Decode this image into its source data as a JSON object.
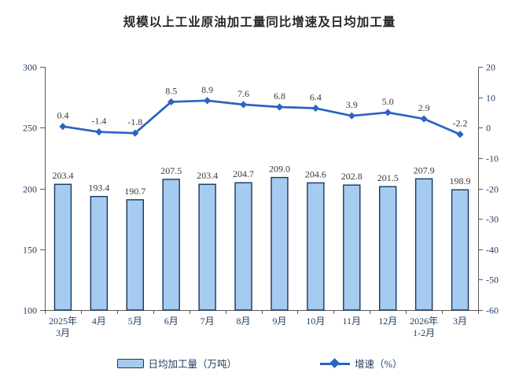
{
  "title": "规模以上工业原油加工量同比增速及日均加工量",
  "chart_data": {
    "type": "bar+line",
    "title": "规模以上工业原油加工量同比增速及日均加工量",
    "categories": [
      "2025年\n3月",
      "4月",
      "5月",
      "6月",
      "7月",
      "8月",
      "9月",
      "10月",
      "11月",
      "12月",
      "2026年\n1-2月",
      "3月"
    ],
    "bar_series": {
      "name": "日均加工量（万吨）",
      "axis": "left",
      "values": [
        203.4,
        193.4,
        190.7,
        207.5,
        203.4,
        204.7,
        209.0,
        204.6,
        202.8,
        201.5,
        207.9,
        198.9
      ],
      "labels": [
        "203.4",
        "193.4",
        "190.7",
        "207.5",
        "203.4",
        "204.7",
        "209.0",
        "204.6",
        "202.8",
        "201.5",
        "207.9",
        "198.9"
      ]
    },
    "line_series": {
      "name": "增速（%）",
      "axis": "right",
      "values": [
        0.4,
        -1.4,
        -1.8,
        8.5,
        8.9,
        7.6,
        6.8,
        6.4,
        3.9,
        5.0,
        2.9,
        -2.2
      ],
      "labels": [
        "0.4",
        "-1.4",
        "-1.8",
        "8.5",
        "8.9",
        "7.6",
        "6.8",
        "6.4",
        "3.9",
        "5.0",
        "2.9",
        "-2.2"
      ]
    },
    "left_axis": {
      "min": 100,
      "max": 300,
      "step": 50
    },
    "right_axis": {
      "min": -60,
      "max": 20,
      "step": 10
    },
    "grid": false,
    "legend_position": "bottom"
  },
  "legend": {
    "bar_label": "日均加工量（万吨）",
    "line_label": "增速（%）"
  },
  "colors": {
    "bar_fill": "#A6CBF0",
    "bar_stroke": "#17375E",
    "line": "#2B63C1",
    "axis_line": "#5A5A5A",
    "axis_text": "#1F3B5E",
    "data_label": "#3A3A3A",
    "title_text": "#262626",
    "background": "#FFFFFF"
  }
}
